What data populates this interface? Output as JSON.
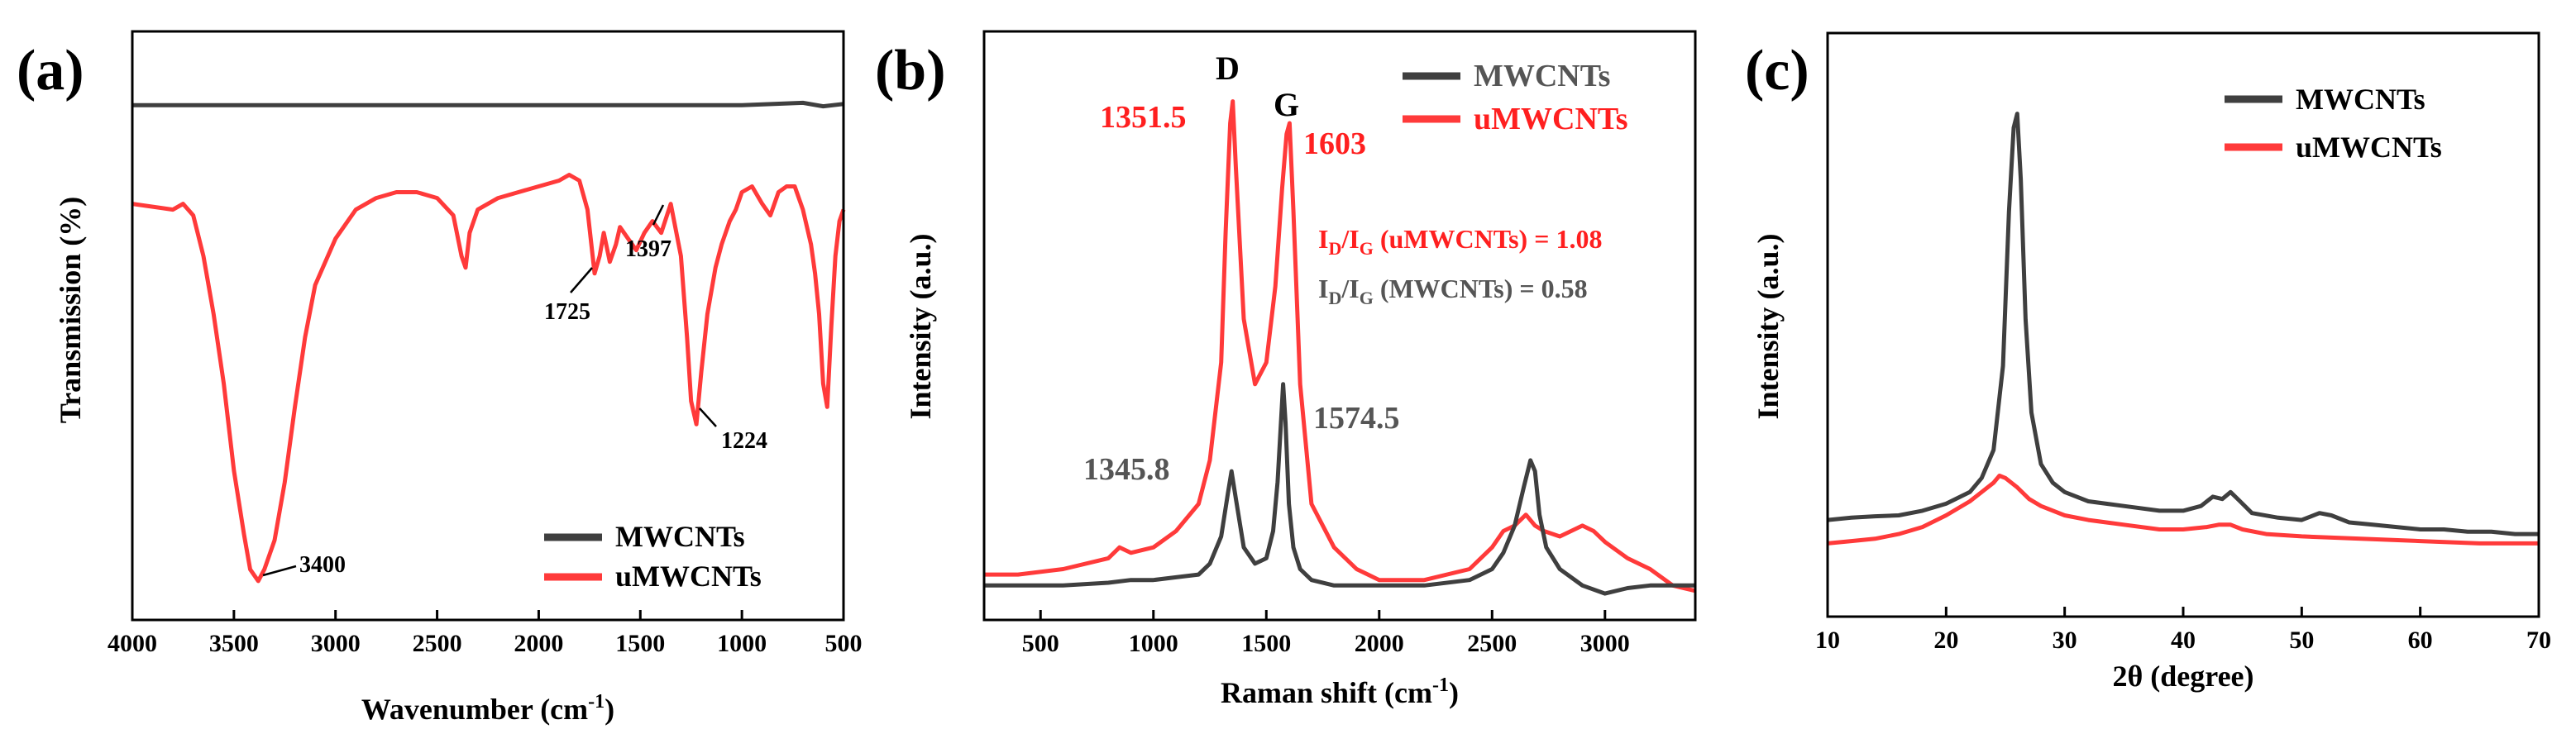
{
  "colors": {
    "mwcnts": "#3f3f3f",
    "umwcnts": "#ff3a3a",
    "axis": "#000000",
    "annot_red": "#ff1f1f",
    "annot_gray": "#555555"
  },
  "chart_data": [
    {
      "panel_label": "(a)",
      "type": "line",
      "xlabel": "Wavenumber (cm",
      "xlabel_sup": "-1",
      "xlabel_end": ")",
      "ylabel": "Transmission (%)",
      "xlim": [
        4000,
        500
      ],
      "ylim": [
        0,
        100
      ],
      "x_ticks": [
        4000,
        3500,
        3000,
        2500,
        2000,
        1500,
        1000,
        500
      ],
      "legend": [
        "MWCNTs",
        "uMWCNTs"
      ],
      "legend_position": "bottom-right",
      "series": [
        {
          "name": "MWCNTs",
          "x": [
            4000,
            3000,
            2000,
            1000,
            700,
            600,
            500
          ],
          "y": [
            88,
            88,
            88,
            88,
            88.4,
            87.8,
            88.2
          ]
        },
        {
          "name": "uMWCNTs",
          "x": [
            4000,
            3800,
            3750,
            3700,
            3650,
            3600,
            3550,
            3500,
            3450,
            3420,
            3380,
            3350,
            3300,
            3250,
            3200,
            3150,
            3100,
            3000,
            2900,
            2800,
            2700,
            2600,
            2500,
            2420,
            2380,
            2360,
            2340,
            2300,
            2200,
            2100,
            2000,
            1900,
            1850,
            1800,
            1760,
            1725,
            1700,
            1680,
            1650,
            1620,
            1600,
            1560,
            1520,
            1480,
            1440,
            1397,
            1350,
            1300,
            1270,
            1250,
            1224,
            1200,
            1170,
            1130,
            1100,
            1060,
            1030,
            1000,
            950,
            900,
            860,
            820,
            780,
            740,
            700,
            660,
            640,
            620,
            600,
            580,
            560,
            540,
            520,
            500
          ],
          "y": [
            71,
            70,
            71,
            69,
            62,
            52,
            40,
            25,
            14,
            8,
            6,
            8,
            13,
            23,
            36,
            48,
            57,
            65,
            70,
            72,
            73,
            73,
            72,
            69,
            62,
            60,
            66,
            70,
            72,
            73,
            74,
            75,
            76,
            75,
            70,
            59,
            62,
            66,
            61,
            64,
            67,
            65,
            63,
            66,
            68,
            66,
            71,
            62,
            48,
            37,
            33,
            42,
            52,
            60,
            64,
            68,
            70,
            73,
            74,
            71,
            69,
            73,
            74,
            74,
            70,
            64,
            59,
            52,
            40,
            36,
            50,
            62,
            68,
            70
          ]
        }
      ],
      "annotations": [
        {
          "text": "3400",
          "x": 3400,
          "y": 6
        },
        {
          "text": "1725",
          "x": 1725,
          "y": 59
        },
        {
          "text": "1397",
          "x": 1397,
          "y": 66
        },
        {
          "text": "1224",
          "x": 1224,
          "y": 33
        }
      ]
    },
    {
      "panel_label": "(b)",
      "type": "line",
      "xlabel": "Raman shift (cm",
      "xlabel_sup": "-1",
      "xlabel_end": ")",
      "ylabel": "Intensity (a.u.)",
      "xlim": [
        250,
        3400
      ],
      "ylim": [
        0,
        100
      ],
      "x_ticks": [
        500,
        1000,
        1500,
        2000,
        2500,
        3000
      ],
      "legend": [
        "MWCNTs",
        "uMWCNTs"
      ],
      "legend_position": "top-right",
      "series": [
        {
          "name": "MWCNTs",
          "x": [
            250,
            400,
            600,
            800,
            900,
            1000,
            1100,
            1200,
            1250,
            1300,
            1330,
            1345.8,
            1365,
            1400,
            1450,
            1500,
            1530,
            1550,
            1565,
            1574.5,
            1585,
            1600,
            1620,
            1650,
            1700,
            1800,
            2000,
            2200,
            2400,
            2500,
            2550,
            2600,
            2640,
            2670,
            2690,
            2710,
            2740,
            2800,
            2900,
            3000,
            3100,
            3200,
            3300,
            3400
          ],
          "y": [
            3,
            3,
            3,
            3.5,
            4,
            4,
            4.5,
            5,
            7,
            12,
            20,
            24,
            19,
            10,
            7,
            8,
            13,
            22,
            33,
            40,
            33,
            18,
            10,
            6,
            4,
            3,
            3,
            3,
            4,
            6,
            9,
            14,
            21,
            26,
            24,
            16,
            10,
            6,
            3,
            1.5,
            2.5,
            3,
            3,
            3
          ]
        },
        {
          "name": "uMWCNTs",
          "x": [
            250,
            400,
            600,
            800,
            850,
            900,
            1000,
            1100,
            1200,
            1250,
            1300,
            1320,
            1340,
            1351.5,
            1365,
            1400,
            1450,
            1500,
            1540,
            1570,
            1590,
            1603,
            1620,
            1650,
            1700,
            1800,
            1900,
            2000,
            2200,
            2400,
            2500,
            2550,
            2600,
            2650,
            2690,
            2730,
            2800,
            2900,
            2950,
            3000,
            3100,
            3200,
            3300,
            3400
          ],
          "y": [
            5,
            5,
            6,
            8,
            10,
            9,
            10,
            13,
            18,
            26,
            44,
            68,
            88,
            92,
            80,
            52,
            40,
            44,
            58,
            76,
            86,
            88,
            72,
            40,
            18,
            10,
            6,
            4,
            4,
            6,
            10,
            13,
            14,
            16,
            14,
            13,
            12,
            14,
            13,
            11,
            8,
            6,
            3,
            2
          ]
        }
      ],
      "annotations": [
        {
          "text": "D",
          "x": 1351.5,
          "y": 99,
          "color": "axis"
        },
        {
          "text": "G",
          "x": 1603,
          "y": 95,
          "color": "axis"
        },
        {
          "text": "1351.5",
          "x": 1351.5,
          "y": 92,
          "color": "annot_red"
        },
        {
          "text": "1603",
          "x": 1603,
          "y": 88,
          "color": "annot_red"
        },
        {
          "text": "1345.8",
          "x": 1345.8,
          "y": 24,
          "color": "annot_gray"
        },
        {
          "text": "1574.5",
          "x": 1574.5,
          "y": 40,
          "color": "annot_gray"
        }
      ],
      "ratio_labels": [
        {
          "prefix": "I",
          "sub1": "D",
          "mid": "/I",
          "sub2": "G",
          "suffix": " (uMWCNTs) = 1.08",
          "color": "annot_red"
        },
        {
          "prefix": "I",
          "sub1": "D",
          "mid": "/I",
          "sub2": "G",
          "suffix": " (MWCNTs) = 0.58",
          "color": "annot_gray"
        }
      ]
    },
    {
      "panel_label": "(c)",
      "type": "line",
      "xlabel": "2θ (degree)",
      "ylabel": "Intensity (a.u.)",
      "xlim": [
        10,
        70
      ],
      "ylim": [
        0,
        100
      ],
      "x_ticks": [
        10,
        20,
        30,
        40,
        50,
        60,
        70
      ],
      "legend": [
        "MWCNTs",
        "uMWCNTs"
      ],
      "legend_position": "top-right",
      "series": [
        {
          "name": "MWCNTs",
          "x": [
            10,
            12,
            14,
            16,
            18,
            20,
            22,
            23,
            24,
            24.8,
            25.3,
            25.7,
            26,
            26.3,
            26.7,
            27.2,
            28,
            29,
            30,
            32,
            35,
            38,
            40,
            41.5,
            42.5,
            43.3,
            44,
            44.8,
            45.8,
            48,
            50,
            51.5,
            52.5,
            54,
            56,
            58,
            60,
            62,
            64,
            66,
            68,
            70
          ],
          "y": [
            9,
            9.5,
            9.8,
            10,
            11,
            12.5,
            15,
            18,
            24,
            42,
            75,
            93,
            96,
            82,
            52,
            32,
            21,
            17,
            15,
            13,
            12,
            11,
            11,
            12,
            14,
            13.5,
            15,
            13,
            10.5,
            9.5,
            9,
            10.5,
            10,
            8.5,
            8,
            7.5,
            7,
            7,
            6.5,
            6.5,
            6,
            6
          ]
        },
        {
          "name": "uMWCNTs",
          "x": [
            10,
            12,
            14,
            16,
            18,
            20,
            22,
            23,
            24,
            24.5,
            25,
            26,
            27,
            28,
            30,
            32,
            35,
            38,
            40,
            42,
            43,
            44,
            45,
            47,
            50,
            55,
            60,
            65,
            70
          ],
          "y": [
            4,
            4.5,
            5,
            6,
            7.5,
            10,
            13,
            15,
            17,
            18.5,
            18,
            16,
            13.5,
            12,
            10,
            9,
            8,
            7,
            7,
            7.5,
            8,
            8,
            7,
            6,
            5.5,
            5,
            4.5,
            4,
            4
          ]
        }
      ]
    }
  ]
}
